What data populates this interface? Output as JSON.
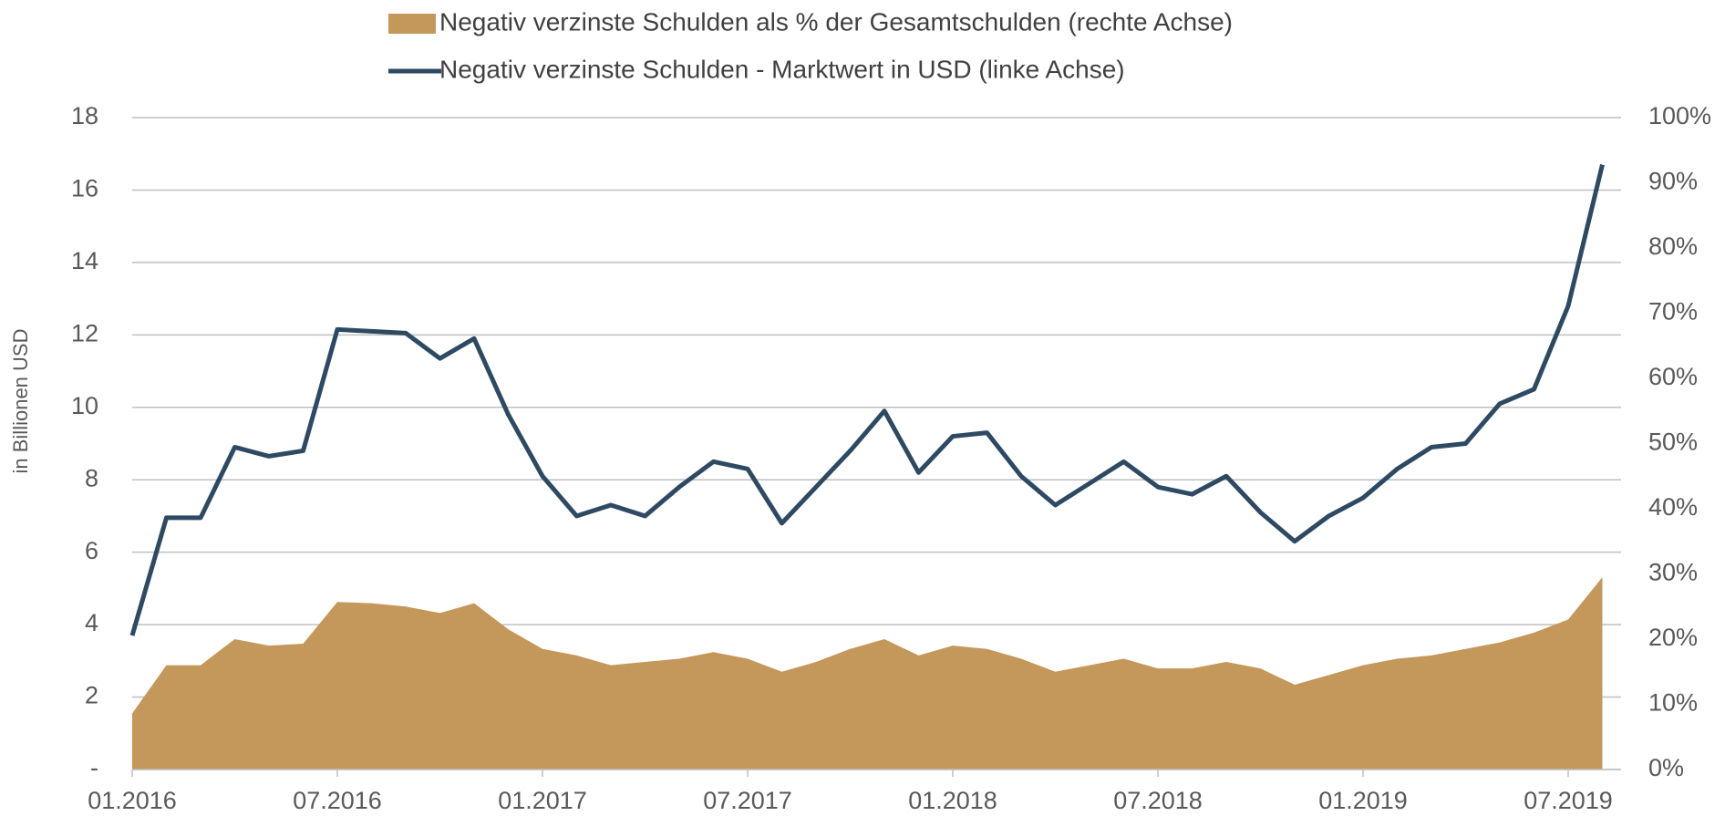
{
  "chart_data": {
    "type": "line",
    "y_axis_label": "in Billionen USD",
    "x": [
      "01.2016",
      "02.2016",
      "03.2016",
      "04.2016",
      "05.2016",
      "06.2016",
      "07.2016",
      "08.2016",
      "09.2016",
      "10.2016",
      "11.2016",
      "12.2016",
      "01.2017",
      "02.2017",
      "03.2017",
      "04.2017",
      "05.2017",
      "06.2017",
      "07.2017",
      "08.2017",
      "09.2017",
      "10.2017",
      "11.2017",
      "12.2017",
      "01.2018",
      "02.2018",
      "03.2018",
      "04.2018",
      "05.2018",
      "06.2018",
      "07.2018",
      "08.2018",
      "09.2018",
      "10.2018",
      "11.2018",
      "12.2018",
      "01.2019",
      "02.2019",
      "03.2019",
      "04.2019",
      "05.2019",
      "06.2019",
      "07.2019",
      "08.2019"
    ],
    "xticks": [
      "01.2016",
      "07.2016",
      "01.2017",
      "07.2017",
      "01.2018",
      "07.2018",
      "01.2019",
      "07.2019"
    ],
    "series": [
      {
        "name": "Negativ verzinste Schulden als % der Gesamtschulden (rechte Achse)",
        "kind": "area",
        "axis": "y2",
        "color": "#c4975a",
        "values": [
          8.6,
          16,
          16,
          20,
          19,
          19.3,
          25.7,
          25.5,
          25,
          24,
          25.5,
          21.5,
          18.5,
          17.5,
          16,
          16.5,
          17,
          18,
          17,
          15,
          16.5,
          18.5,
          20,
          17.5,
          19,
          18.5,
          17,
          15,
          16,
          17,
          15.5,
          15.5,
          16.5,
          15.5,
          13,
          14.5,
          16,
          17,
          17.5,
          18.5,
          19.5,
          21,
          23,
          29.5
        ]
      },
      {
        "name": "Negativ verzinste Schulden - Marktwert in USD (linke Achse)",
        "kind": "line",
        "color": "#2e4a63",
        "values": [
          3.7,
          6.95,
          6.95,
          8.9,
          8.65,
          8.8,
          12.15,
          12.1,
          12.05,
          11.35,
          11.9,
          9.8,
          8.1,
          7.0,
          7.3,
          7.0,
          7.8,
          8.5,
          8.3,
          6.8,
          7.8,
          8.8,
          9.9,
          8.2,
          9.2,
          9.3,
          8.1,
          7.3,
          7.9,
          8.5,
          7.8,
          7.6,
          8.1,
          7.1,
          6.3,
          7.0,
          7.5,
          8.3,
          8.9,
          9.0,
          10.1,
          10.5,
          12.8,
          16.7
        ]
      }
    ],
    "ylim": [
      0,
      18
    ],
    "yticks": [
      {
        "value": 0,
        "label": "-"
      },
      2,
      4,
      6,
      8,
      10,
      12,
      14,
      16,
      18
    ],
    "y2lim": [
      0,
      100
    ],
    "y2ticks": [
      {
        "value": 0,
        "label": "0%"
      },
      {
        "value": 10,
        "label": "10%"
      },
      {
        "value": 20,
        "label": "20%"
      },
      {
        "value": 30,
        "label": "30%"
      },
      {
        "value": 40,
        "label": "40%"
      },
      {
        "value": 50,
        "label": "50%"
      },
      {
        "value": 60,
        "label": "60%"
      },
      {
        "value": 70,
        "label": "70%"
      },
      {
        "value": 80,
        "label": "80%"
      },
      {
        "value": 90,
        "label": "90%"
      },
      {
        "value": 100,
        "label": "100%"
      }
    ],
    "grid": true
  }
}
